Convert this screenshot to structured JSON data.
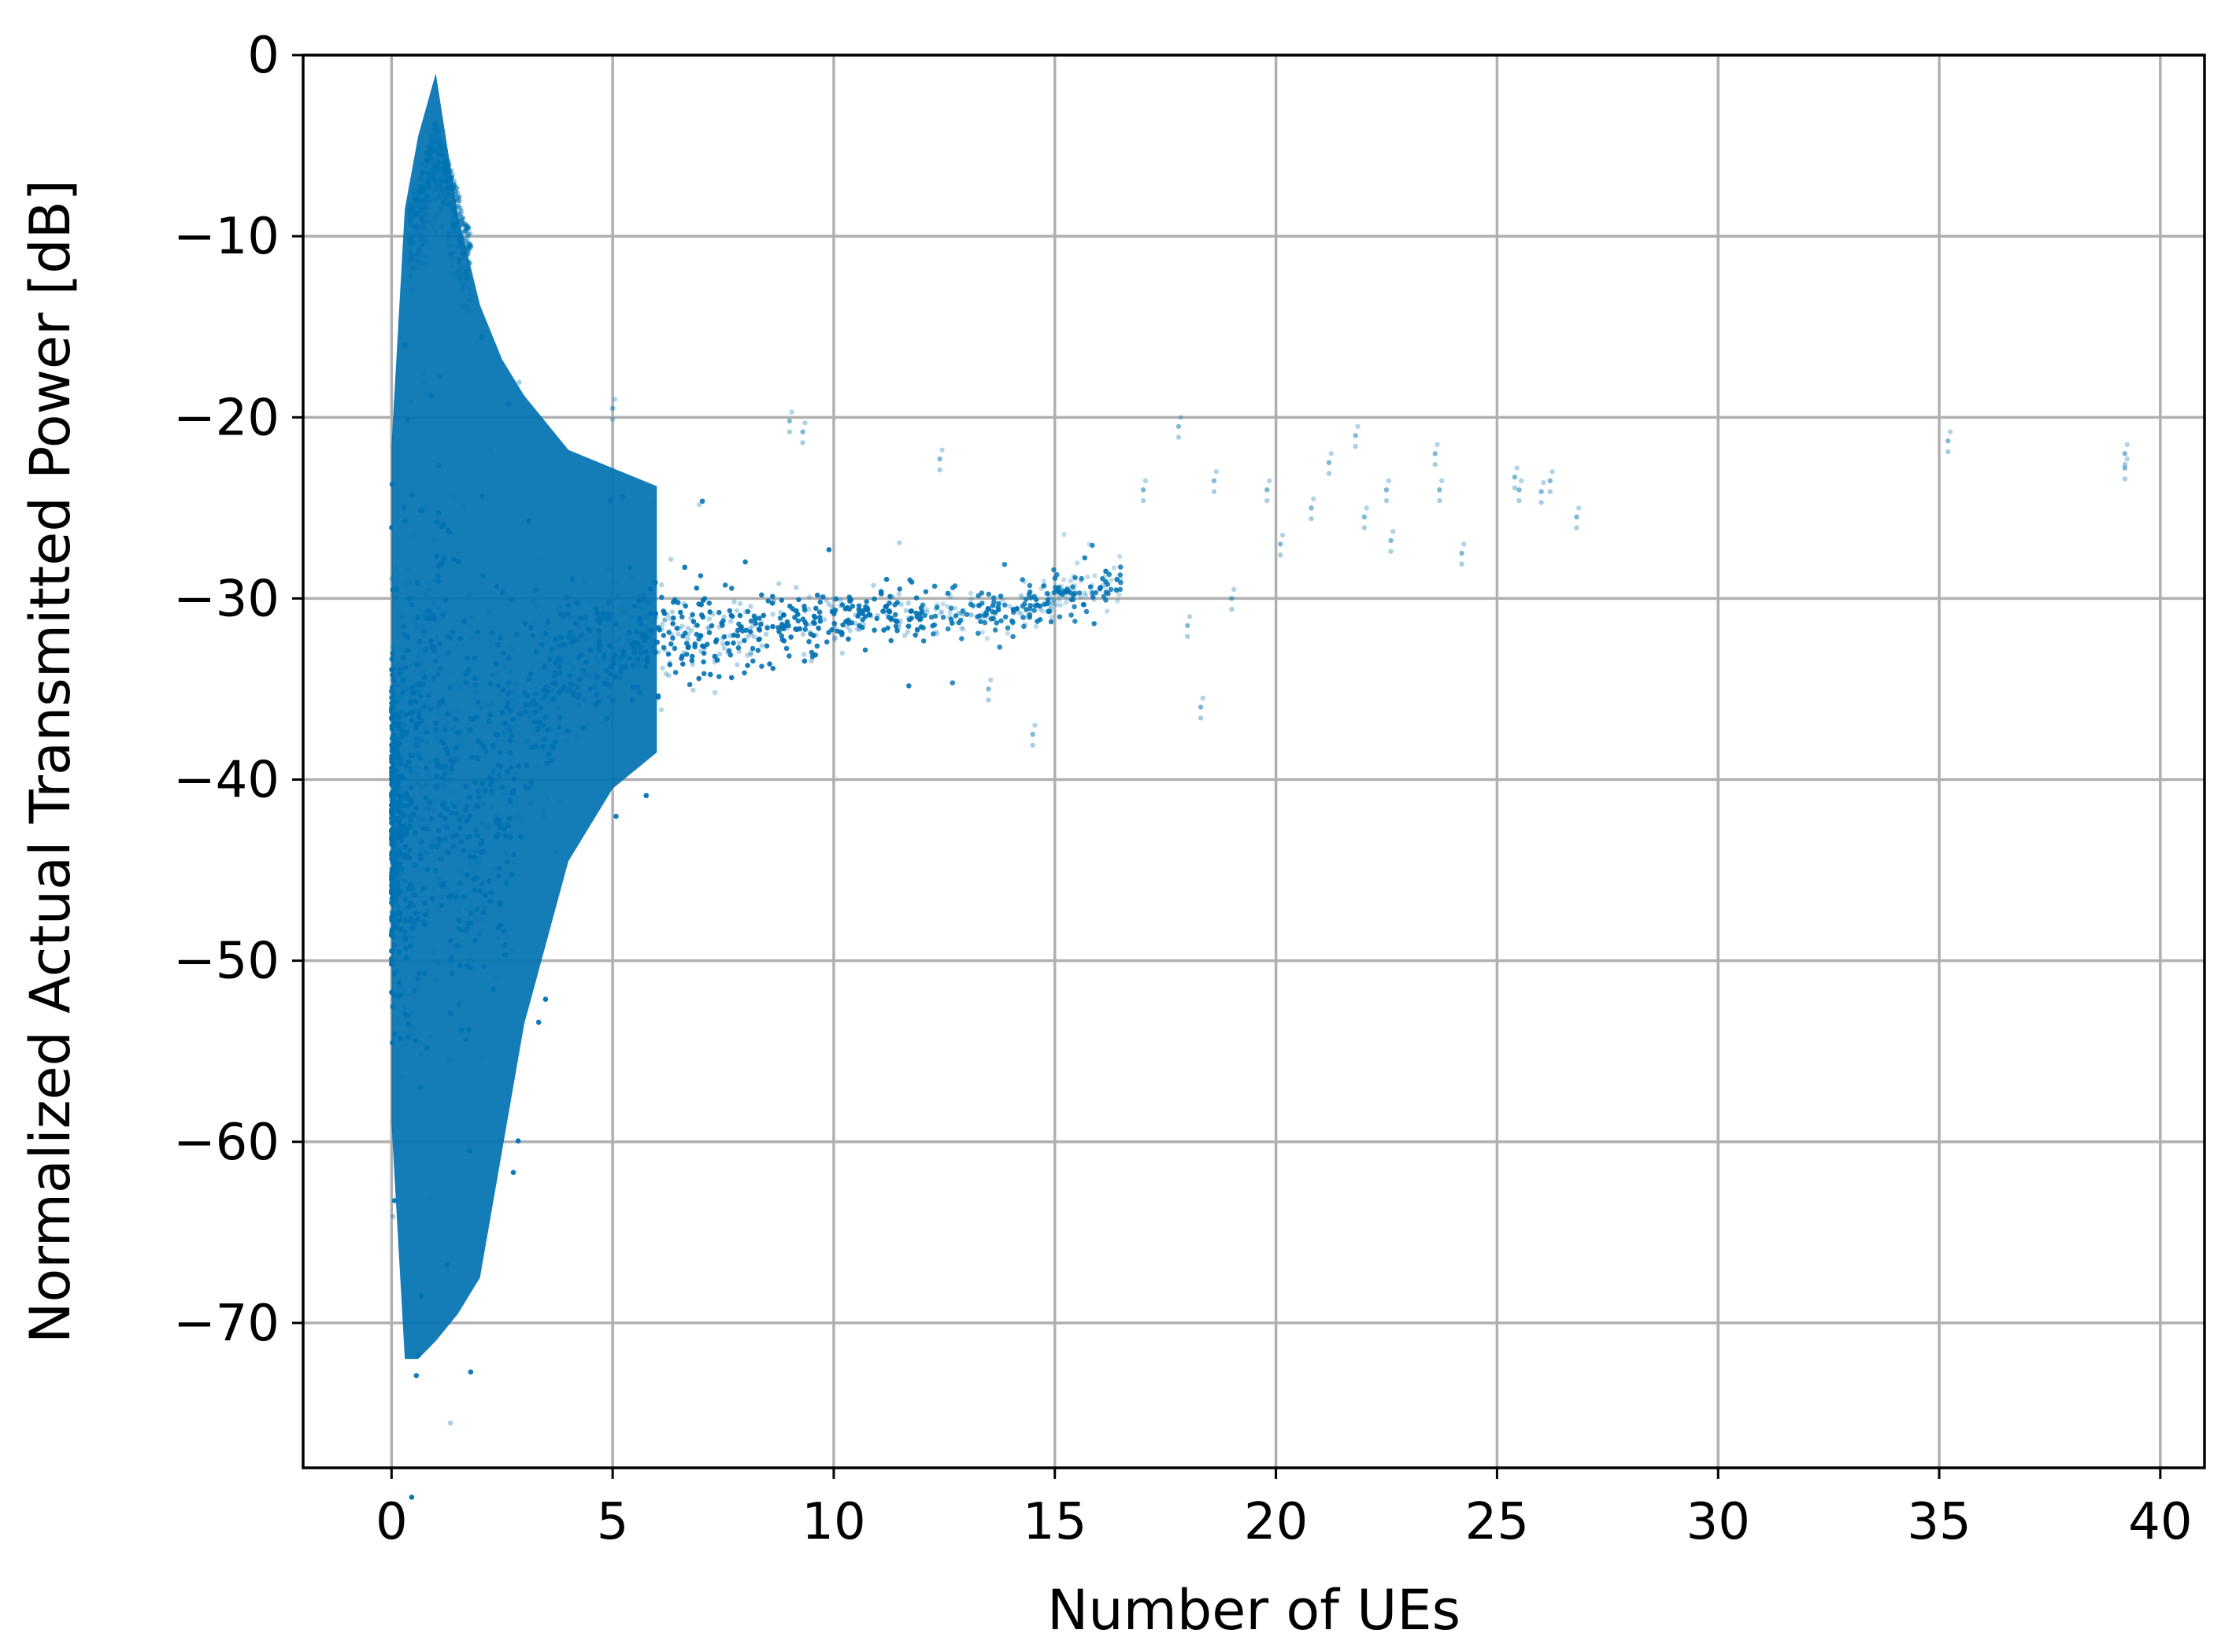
{
  "chart_data": {
    "type": "scatter",
    "title": "",
    "xlabel": "Number of UEs",
    "ylabel": "Normalized Actual Transmitted Power [dB]",
    "xlim": [
      -2,
      41
    ],
    "ylim": [
      -78,
      0
    ],
    "xticks": [
      0,
      5,
      10,
      15,
      20,
      25,
      30,
      35,
      40
    ],
    "yticks": [
      0,
      -10,
      -20,
      -30,
      -40,
      -50,
      -60,
      -70
    ],
    "xtick_labels": [
      "0",
      "5",
      "10",
      "15",
      "20",
      "25",
      "30",
      "35",
      "40"
    ],
    "ytick_labels": [
      "0",
      "−10",
      "−20",
      "−30",
      "−40",
      "−50",
      "−60",
      "−70"
    ],
    "grid": true,
    "marker_color": "#0072b2",
    "marker_alpha": 0.3,
    "point_density": "very dense cloud (tens of thousands of points)",
    "envelope": [
      {
        "x": 0.0,
        "upper": -24,
        "lower": -60,
        "mid_fill": true
      },
      {
        "x": 0.3,
        "upper": -11,
        "lower": -73,
        "mid_fill": true
      },
      {
        "x": 0.6,
        "upper": -7,
        "lower": -73,
        "mid_fill": true
      },
      {
        "x": 1.0,
        "upper": -3.5,
        "lower": -72,
        "mid_fill": true
      },
      {
        "x": 1.5,
        "upper": -10,
        "lower": -70,
        "mid_fill": true
      },
      {
        "x": 2.0,
        "upper": -15,
        "lower": -68,
        "mid_fill": true
      },
      {
        "x": 2.5,
        "upper": -18,
        "lower": -61,
        "mid_fill": true
      },
      {
        "x": 3.0,
        "upper": -20,
        "lower": -54,
        "mid_fill": true
      },
      {
        "x": 4.0,
        "upper": -23,
        "lower": -45,
        "mid_fill": true
      },
      {
        "x": 5.0,
        "upper": -24,
        "lower": -41,
        "mid_fill": true
      },
      {
        "x": 6.0,
        "upper": -25,
        "lower": -39,
        "mid_fill": true
      },
      {
        "x": 7.0,
        "upper": -26,
        "lower": -38,
        "mid_fill": false
      },
      {
        "x": 8.0,
        "upper": -26.5,
        "lower": -37,
        "mid_fill": false
      },
      {
        "x": 10.0,
        "upper": -27,
        "lower": -35,
        "mid_fill": false
      },
      {
        "x": 12.0,
        "upper": -27.5,
        "lower": -34,
        "mid_fill": false
      },
      {
        "x": 14.0,
        "upper": -27.5,
        "lower": -34,
        "mid_fill": false
      },
      {
        "x": 16.0,
        "upper": -26.5,
        "lower": -32,
        "mid_fill": false
      }
    ],
    "outliers": [
      {
        "x": 5.0,
        "y": -19.5
      },
      {
        "x": 9.0,
        "y": -20.2
      },
      {
        "x": 9.3,
        "y": -20.8
      },
      {
        "x": 12.4,
        "y": -22.3
      },
      {
        "x": 13.5,
        "y": -35.0
      },
      {
        "x": 14.5,
        "y": -37.5
      },
      {
        "x": 17.0,
        "y": -24.0
      },
      {
        "x": 17.8,
        "y": -20.5
      },
      {
        "x": 18.0,
        "y": -31.5
      },
      {
        "x": 18.3,
        "y": -36.0
      },
      {
        "x": 18.6,
        "y": -23.5
      },
      {
        "x": 19.0,
        "y": -30.0
      },
      {
        "x": 19.8,
        "y": -24.0
      },
      {
        "x": 20.1,
        "y": -27.0
      },
      {
        "x": 20.8,
        "y": -25.0
      },
      {
        "x": 21.2,
        "y": -22.5
      },
      {
        "x": 21.8,
        "y": -21.0
      },
      {
        "x": 22.0,
        "y": -25.5
      },
      {
        "x": 22.5,
        "y": -24.0
      },
      {
        "x": 22.6,
        "y": -26.8
      },
      {
        "x": 23.6,
        "y": -22.0
      },
      {
        "x": 23.7,
        "y": -24.0
      },
      {
        "x": 24.2,
        "y": -27.5
      },
      {
        "x": 25.4,
        "y": -23.3
      },
      {
        "x": 25.5,
        "y": -24.0
      },
      {
        "x": 26.0,
        "y": -24.1
      },
      {
        "x": 26.2,
        "y": -23.5
      },
      {
        "x": 26.8,
        "y": -25.5
      },
      {
        "x": 35.2,
        "y": -21.3
      },
      {
        "x": 39.2,
        "y": -22.0
      },
      {
        "x": 39.2,
        "y": -22.8
      }
    ]
  }
}
